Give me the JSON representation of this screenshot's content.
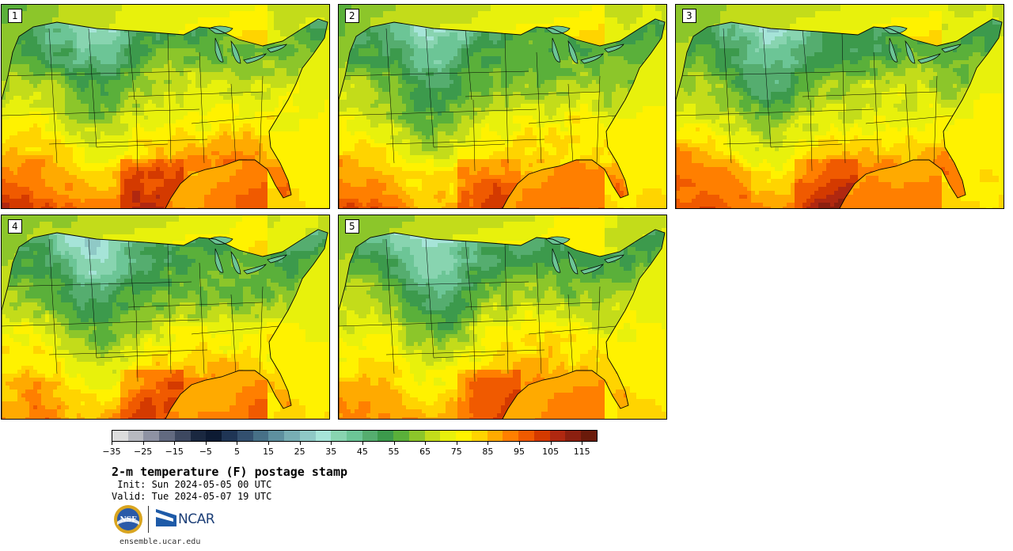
{
  "panels": [
    {
      "label": "1",
      "warmth": 0.95
    },
    {
      "label": "2",
      "warmth": 0.85
    },
    {
      "label": "3",
      "warmth": 0.9
    },
    {
      "label": "4",
      "warmth": 0.8
    },
    {
      "label": "5",
      "warmth": 0.82
    }
  ],
  "colorbar": {
    "colors": [
      "#dcdcdc",
      "#b7b9c0",
      "#8e92a3",
      "#626a80",
      "#3d4860",
      "#1a2840",
      "#0d1b33",
      "#1f3555",
      "#33506f",
      "#477087",
      "#5e909f",
      "#78aeb4",
      "#8fc9c6",
      "#a6e4d8",
      "#88d4b0",
      "#6cc596",
      "#55ad6f",
      "#3c9a4c",
      "#5ab03a",
      "#8cc62a",
      "#c3dc1a",
      "#e8f10c",
      "#fff200",
      "#ffd400",
      "#ffaa00",
      "#ff7f00",
      "#f05a00",
      "#d43a00",
      "#b02810",
      "#8c2010",
      "#6a1a0a"
    ],
    "tick_labels": [
      "−35",
      "−25",
      "−15",
      "−5",
      "5",
      "15",
      "25",
      "35",
      "45",
      "55",
      "65",
      "75",
      "85",
      "95",
      "105",
      "115"
    ]
  },
  "title": "2-m temperature (F) postage stamp",
  "init_line": " Init: Sun 2024-05-05 00 UTC",
  "valid_line": "Valid: Tue 2024-05-07 19 UTC",
  "logos": {
    "nsf_text": "NSF",
    "ncar_text": "NCAR"
  },
  "website": "ensemble.ucar.edu"
}
